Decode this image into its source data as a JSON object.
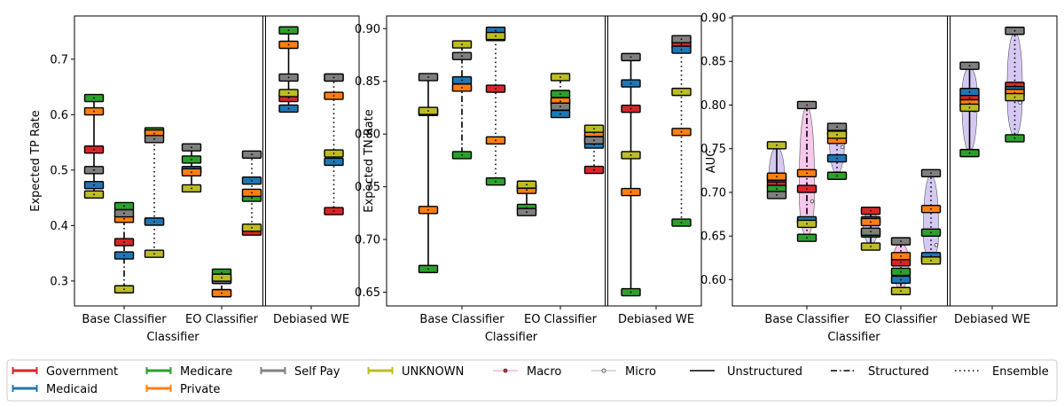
{
  "colors": {
    "Government": "#d62728",
    "Medicaid": "#1f77b4",
    "Medicare": "#2ca02c",
    "Private": "#ff7f0e",
    "Self Pay": "#7f7f7f",
    "UNKNOWN": "#bcbd22",
    "macro_fill": "#f2b6e6",
    "micro_fill": "#c7b7ef"
  },
  "legend": {
    "groups": [
      "Government",
      "Medicaid",
      "Medicare",
      "Private",
      "Self Pay",
      "UNKNOWN"
    ],
    "macro": "Macro",
    "micro": "Micro",
    "unstructured": "Unstructured",
    "structured": "Structured",
    "ensemble": "Ensemble"
  },
  "chart_data": [
    {
      "type": "range",
      "ylabel": "Expected TP Rate",
      "xlabel": "Classifier",
      "ylim": [
        0.255,
        0.778
      ],
      "yticks": [
        "0.3",
        "0.4",
        "0.5",
        "0.6",
        "0.7"
      ],
      "categories": [
        "Base Classifier",
        "EO Classifier",
        "Debiased WE"
      ],
      "series": [
        {
          "category": "Base Classifier",
          "style": "Unstructured",
          "values": {
            "Government": 0.537,
            "Medicaid": 0.473,
            "Medicare": 0.63,
            "Private": 0.606,
            "Self Pay": 0.5,
            "UNKNOWN": 0.456
          }
        },
        {
          "category": "Base Classifier",
          "style": "Structured",
          "values": {
            "Government": 0.37,
            "Medicaid": 0.346,
            "Medicare": 0.435,
            "Private": 0.412,
            "Self Pay": 0.422,
            "UNKNOWN": 0.285
          }
        },
        {
          "category": "Base Classifier",
          "style": "Ensemble",
          "values": {
            "Government": 0.407,
            "Medicaid": 0.407,
            "Medicare": 0.57,
            "Private": 0.566,
            "Self Pay": 0.556,
            "UNKNOWN": 0.349
          }
        },
        {
          "category": "EO Classifier",
          "style": "Unstructured",
          "values": {
            "Government": 0.5,
            "Medicaid": 0.5,
            "Medicare": 0.519,
            "Private": 0.496,
            "Self Pay": 0.541,
            "UNKNOWN": 0.467
          }
        },
        {
          "category": "EO Classifier",
          "style": "Structured",
          "values": {
            "Government": 0.278,
            "Medicaid": 0.302,
            "Medicare": 0.315,
            "Private": 0.278,
            "Self Pay": 0.302,
            "UNKNOWN": 0.306
          }
        },
        {
          "category": "EO Classifier",
          "style": "Ensemble",
          "values": {
            "Government": 0.389,
            "Medicaid": 0.481,
            "Medicare": 0.45,
            "Private": 0.459,
            "Self Pay": 0.528,
            "UNKNOWN": 0.396
          }
        },
        {
          "category": "Debiased WE",
          "style": "Unstructured",
          "values": {
            "Government": 0.63,
            "Medicaid": 0.611,
            "Medicare": 0.752,
            "Private": 0.726,
            "Self Pay": 0.667,
            "UNKNOWN": 0.639
          }
        },
        {
          "category": "Debiased WE",
          "style": "Ensemble",
          "values": {
            "Government": 0.426,
            "Medicaid": 0.515,
            "Medicare": 0.667,
            "Private": 0.634,
            "Self Pay": 0.667,
            "UNKNOWN": 0.53
          }
        }
      ]
    },
    {
      "type": "range",
      "ylabel": "Expected TN Rate",
      "xlabel": "Classifier",
      "ylim": [
        0.637,
        0.912
      ],
      "yticks": [
        "0.65",
        "0.70",
        "0.75",
        "0.80",
        "0.85",
        "0.90"
      ],
      "categories": [
        "Base Classifier",
        "EO Classifier",
        "Debiased WE"
      ],
      "series": [
        {
          "category": "Base Classifier",
          "style": "Unstructured",
          "values": {
            "Government": 0.821,
            "Medicaid": 0.821,
            "Medicare": 0.672,
            "Private": 0.728,
            "Self Pay": 0.854,
            "UNKNOWN": 0.822
          }
        },
        {
          "category": "Base Classifier",
          "style": "Structured",
          "values": {
            "Government": 0.844,
            "Medicaid": 0.851,
            "Medicare": 0.78,
            "Private": 0.844,
            "Self Pay": 0.874,
            "UNKNOWN": 0.885
          }
        },
        {
          "category": "Base Classifier",
          "style": "Ensemble",
          "values": {
            "Government": 0.843,
            "Medicaid": 0.898,
            "Medicare": 0.755,
            "Private": 0.794,
            "Self Pay": 0.892,
            "UNKNOWN": 0.893
          }
        },
        {
          "category": "EO Classifier",
          "style": "Unstructured",
          "values": {
            "Government": 0.749,
            "Medicaid": 0.749,
            "Medicare": 0.73,
            "Private": 0.747,
            "Self Pay": 0.726,
            "UNKNOWN": 0.752
          }
        },
        {
          "category": "EO Classifier",
          "style": "Structured",
          "values": {
            "Government": 0.831,
            "Medicaid": 0.819,
            "Medicare": 0.838,
            "Private": 0.831,
            "Self Pay": 0.826,
            "UNKNOWN": 0.854
          }
        },
        {
          "category": "EO Classifier",
          "style": "Ensemble",
          "values": {
            "Government": 0.766,
            "Medicaid": 0.79,
            "Medicare": 0.796,
            "Private": 0.801,
            "Self Pay": 0.794,
            "UNKNOWN": 0.805
          }
        },
        {
          "category": "Debiased WE",
          "style": "Unstructured",
          "values": {
            "Government": 0.824,
            "Medicaid": 0.848,
            "Medicare": 0.65,
            "Private": 0.745,
            "Self Pay": 0.873,
            "UNKNOWN": 0.78
          }
        },
        {
          "category": "Debiased WE",
          "style": "Ensemble",
          "values": {
            "Government": 0.885,
            "Medicaid": 0.88,
            "Medicare": 0.716,
            "Private": 0.802,
            "Self Pay": 0.89,
            "UNKNOWN": 0.84
          }
        }
      ]
    },
    {
      "type": "range-violin",
      "ylabel": "AUC",
      "xlabel": "Classifier",
      "ylim": [
        0.57,
        0.902
      ],
      "yticks": [
        "0.60",
        "0.65",
        "0.70",
        "0.75",
        "0.80",
        "0.85",
        "0.90"
      ],
      "categories": [
        "Base Classifier",
        "EO Classifier",
        "Debiased WE"
      ],
      "series": [
        {
          "category": "Base Classifier",
          "style": "Unstructured",
          "values": {
            "Government": 0.71,
            "Medicaid": 0.716,
            "Medicare": 0.704,
            "Private": 0.718,
            "Self Pay": 0.697,
            "UNKNOWN": 0.754
          }
        },
        {
          "category": "Base Classifier",
          "style": "Structured",
          "values": {
            "Government": 0.704,
            "Medicaid": 0.668,
            "Medicare": 0.648,
            "Private": 0.722,
            "Self Pay": 0.8,
            "UNKNOWN": 0.664
          }
        },
        {
          "category": "Base Classifier",
          "style": "Ensemble",
          "values": {
            "Government": 0.769,
            "Medicaid": 0.739,
            "Medicare": 0.719,
            "Private": 0.76,
            "Self Pay": 0.775,
            "UNKNOWN": 0.766
          }
        },
        {
          "category": "EO Classifier",
          "style": "Unstructured",
          "values": {
            "Government": 0.679,
            "Medicaid": 0.668,
            "Medicare": 0.653,
            "Private": 0.666,
            "Self Pay": 0.655,
            "UNKNOWN": 0.638
          }
        },
        {
          "category": "EO Classifier",
          "style": "Structured",
          "values": {
            "Government": 0.62,
            "Medicaid": 0.6,
            "Medicare": 0.609,
            "Private": 0.627,
            "Self Pay": 0.644,
            "UNKNOWN": 0.587
          }
        },
        {
          "category": "EO Classifier",
          "style": "Ensemble",
          "values": {
            "Government": 0.624,
            "Medicaid": 0.627,
            "Medicare": 0.654,
            "Private": 0.681,
            "Self Pay": 0.722,
            "UNKNOWN": 0.622
          }
        },
        {
          "category": "Debiased WE",
          "style": "Unstructured",
          "values": {
            "Government": 0.808,
            "Medicaid": 0.815,
            "Medicare": 0.745,
            "Private": 0.802,
            "Self Pay": 0.845,
            "UNKNOWN": 0.797
          }
        },
        {
          "category": "Debiased WE",
          "style": "Ensemble",
          "values": {
            "Government": 0.822,
            "Medicaid": 0.817,
            "Medicare": 0.762,
            "Private": 0.814,
            "Self Pay": 0.885,
            "UNKNOWN": 0.809
          }
        }
      ]
    }
  ]
}
